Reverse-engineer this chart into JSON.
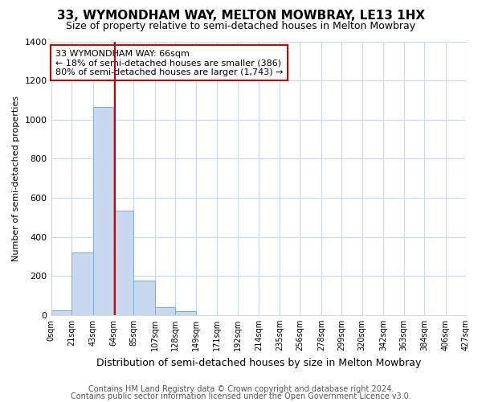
{
  "title": "33, WYMONDHAM WAY, MELTON MOWBRAY, LE13 1HX",
  "subtitle": "Size of property relative to semi-detached houses in Melton Mowbray",
  "xlabel": "Distribution of semi-detached houses by size in Melton Mowbray",
  "ylabel": "Number of semi-detached properties",
  "footnote1": "Contains HM Land Registry data © Crown copyright and database right 2024.",
  "footnote2": "Contains public sector information licensed under the Open Government Licence v3.0.",
  "bar_left_edges": [
    0,
    21,
    43,
    64,
    85,
    107,
    128,
    149,
    171,
    192,
    214,
    235,
    256,
    278,
    299,
    320,
    342,
    363,
    384,
    406
  ],
  "bar_widths": [
    21,
    22,
    21,
    21,
    22,
    21,
    21,
    22,
    21,
    22,
    21,
    21,
    22,
    21,
    21,
    22,
    21,
    21,
    22,
    21
  ],
  "bar_heights": [
    25,
    320,
    1065,
    535,
    175,
    40,
    20,
    0,
    0,
    0,
    0,
    0,
    0,
    0,
    0,
    0,
    0,
    0,
    0,
    0
  ],
  "bar_color": "#c8d8f0",
  "bar_edge_color": "#7bafd4",
  "tick_labels": [
    "0sqm",
    "21sqm",
    "43sqm",
    "64sqm",
    "85sqm",
    "107sqm",
    "128sqm",
    "149sqm",
    "171sqm",
    "192sqm",
    "214sqm",
    "235sqm",
    "256sqm",
    "278sqm",
    "299sqm",
    "320sqm",
    "342sqm",
    "363sqm",
    "384sqm",
    "406sqm",
    "427sqm"
  ],
  "property_line_x": 66,
  "annotation_line1": "33 WYMONDHAM WAY: 66sqm",
  "annotation_line2": "← 18% of semi-detached houses are smaller (386)",
  "annotation_line3": "80% of semi-detached houses are larger (1,743) →",
  "ylim": [
    0,
    1400
  ],
  "bg_color": "#ffffff",
  "plot_bg_color": "#ffffff",
  "grid_color": "#c8d8f0",
  "annotation_box_color": "#ffffff",
  "annotation_box_edge": "#cc0000",
  "line_color": "#cc0000",
  "title_fontsize": 11,
  "subtitle_fontsize": 9,
  "xlabel_fontsize": 9,
  "ylabel_fontsize": 8,
  "tick_fontsize": 7,
  "footnote_fontsize": 7
}
